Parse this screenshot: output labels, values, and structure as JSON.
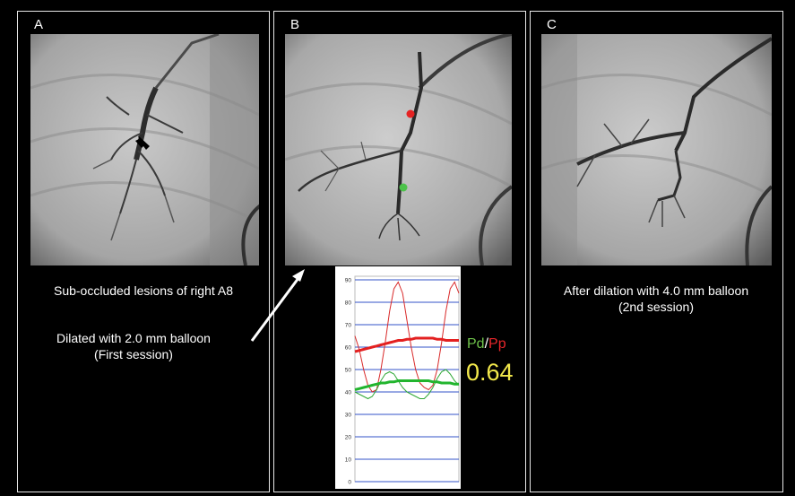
{
  "panels": {
    "a": {
      "label": "A",
      "caption": "Sub-occluded lesions of right A8"
    },
    "b": {
      "label": "B",
      "caption_line1": "Dilated with 2.0 mm balloon",
      "caption_line2": "(First session)"
    },
    "c": {
      "label": "C",
      "caption_line1": "After dilation with 4.0 mm balloon",
      "caption_line2": "(2nd session)"
    }
  },
  "pressure_readout": {
    "pd_label": "Pd",
    "separator": "/",
    "pp_label": "Pp",
    "ratio": "0.64",
    "colors": {
      "pd": "#6ec24a",
      "pp": "#e8262a",
      "ratio": "#f2e84b"
    }
  },
  "chart_data": {
    "type": "line",
    "yticks": [
      "90",
      "80",
      "70",
      "60",
      "50",
      "40",
      "30",
      "20",
      "10",
      "0"
    ],
    "ylim": [
      0,
      90
    ],
    "grid": true,
    "series": [
      {
        "color": "#d92b2b",
        "values": [
          65,
          59,
          50,
          43,
          40,
          41,
          50,
          62,
          76,
          86,
          89,
          84,
          72,
          60,
          50,
          44,
          42,
          41,
          43,
          50,
          62,
          76,
          86,
          89,
          84
        ]
      },
      {
        "color": "#2fa836",
        "values": [
          40,
          39,
          38,
          37,
          38,
          41,
          45,
          48,
          49,
          48,
          45,
          42,
          40,
          39,
          38,
          37,
          37,
          39,
          42,
          46,
          49,
          50,
          48,
          45,
          43
        ]
      },
      {
        "color": "#e32020",
        "values": [
          58,
          58.5,
          59,
          59.5,
          60,
          60.5,
          61,
          61.5,
          62,
          62.5,
          63,
          63,
          63.5,
          63.5,
          64,
          64,
          64,
          64,
          64,
          63.5,
          63.5,
          63,
          63,
          63,
          63
        ]
      },
      {
        "color": "#22b52e",
        "values": [
          41,
          41.5,
          42,
          42.5,
          43,
          43.5,
          44,
          44,
          44.5,
          44.5,
          45,
          45,
          45,
          45,
          45,
          45,
          45,
          45,
          44.5,
          44.5,
          44,
          44,
          44,
          43.5,
          43.5
        ]
      }
    ]
  }
}
